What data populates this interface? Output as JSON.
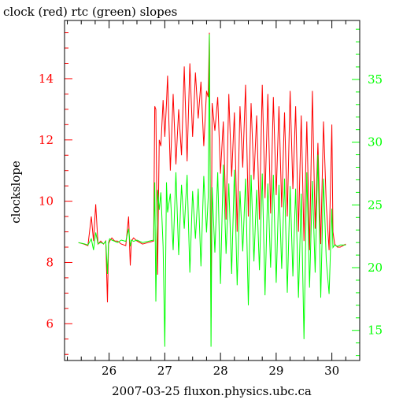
{
  "chart_data": {
    "type": "line",
    "title": "clock (red) rtc (green) slopes",
    "xlabel": "2007-03-25 fluxon.physics.ubc.ca",
    "ylabel": "clockslope",
    "y2label": "",
    "xlim": [
      25.2,
      30.5
    ],
    "ylim": [
      4.8,
      15.9
    ],
    "y2lim": [
      12.6,
      39.7
    ],
    "x_ticks": [
      26,
      27,
      28,
      29,
      30
    ],
    "x_tick_labels": [
      "26",
      "27",
      "28",
      "29",
      "30"
    ],
    "y_ticks": [
      6,
      8,
      10,
      12,
      14
    ],
    "y_tick_labels": [
      "6",
      "8",
      "10",
      "12",
      "14"
    ],
    "y2_ticks": [
      15,
      20,
      25,
      30,
      35
    ],
    "y2_tick_labels": [
      "15",
      "20",
      "25",
      "30",
      "35"
    ],
    "grid": false,
    "colors": {
      "clock": "#ff0000",
      "rtc": "#00ff00",
      "axis_left": "#ff0000",
      "axis_right": "#00ff00",
      "frame": "#000000"
    },
    "series": [
      {
        "name": "clock",
        "axis": "left",
        "color": "#ff0000",
        "x": [
          25.45,
          25.55,
          25.62,
          25.68,
          25.72,
          25.76,
          25.8,
          25.85,
          25.9,
          25.94,
          25.97,
          25.99,
          26.01,
          26.05,
          26.1,
          26.15,
          26.22,
          26.3,
          26.35,
          26.38,
          26.4,
          26.44,
          26.5,
          26.6,
          26.7,
          26.8,
          26.82,
          26.84,
          26.87,
          26.9,
          26.93,
          26.97,
          27.0,
          27.03,
          27.05,
          27.1,
          27.15,
          27.2,
          27.25,
          27.3,
          27.35,
          27.4,
          27.45,
          27.5,
          27.55,
          27.6,
          27.65,
          27.7,
          27.75,
          27.78,
          27.8,
          27.83,
          27.85,
          27.9,
          27.95,
          28.0,
          28.05,
          28.1,
          28.15,
          28.2,
          28.25,
          28.3,
          28.35,
          28.4,
          28.45,
          28.5,
          28.55,
          28.6,
          28.65,
          28.7,
          28.75,
          28.8,
          28.85,
          28.9,
          28.95,
          29.0,
          29.05,
          29.1,
          29.15,
          29.2,
          29.25,
          29.3,
          29.35,
          29.4,
          29.45,
          29.5,
          29.55,
          29.6,
          29.65,
          29.7,
          29.75,
          29.8,
          29.85,
          29.9,
          29.95,
          30.0,
          30.02,
          30.05,
          30.1,
          30.15,
          30.2,
          30.25
        ],
        "values": [
          8.65,
          8.6,
          8.55,
          9.5,
          8.7,
          9.9,
          8.6,
          8.7,
          8.6,
          8.7,
          6.7,
          8.6,
          8.7,
          8.8,
          8.7,
          8.7,
          8.6,
          8.55,
          9.5,
          7.9,
          8.7,
          8.8,
          8.7,
          8.6,
          8.65,
          8.7,
          13.1,
          13.0,
          7.6,
          12.0,
          11.8,
          13.3,
          12.1,
          13.2,
          14.1,
          11.0,
          13.5,
          11.2,
          13.0,
          11.5,
          14.4,
          11.3,
          14.5,
          12.1,
          14.2,
          12.7,
          13.9,
          11.8,
          13.6,
          13.4,
          15.5,
          6.2,
          13.2,
          12.3,
          13.4,
          10.9,
          12.6,
          9.4,
          13.5,
          10.8,
          12.9,
          9.0,
          13.1,
          11.1,
          13.8,
          9.5,
          13.2,
          10.7,
          12.8,
          9.4,
          13.8,
          10.1,
          13.5,
          9.6,
          13.4,
          10.2,
          13.1,
          9.8,
          12.9,
          9.5,
          13.6,
          10.4,
          13.1,
          9.0,
          12.8,
          8.7,
          12.6,
          8.4,
          13.6,
          9.1,
          11.9,
          8.6,
          12.6,
          9.9,
          8.4,
          12.5,
          9.0,
          8.6,
          8.5,
          8.5,
          8.55,
          8.6
        ]
      },
      {
        "name": "rtc",
        "axis": "right",
        "color": "#00ff00",
        "x": [
          25.45,
          25.55,
          25.62,
          25.68,
          25.72,
          25.76,
          25.8,
          25.85,
          25.9,
          25.94,
          25.97,
          25.99,
          26.01,
          26.05,
          26.1,
          26.15,
          26.22,
          26.3,
          26.35,
          26.38,
          26.4,
          26.44,
          26.5,
          26.6,
          26.7,
          26.8,
          26.82,
          26.84,
          26.87,
          26.9,
          26.93,
          26.97,
          27.0,
          27.03,
          27.05,
          27.1,
          27.15,
          27.2,
          27.25,
          27.3,
          27.35,
          27.4,
          27.45,
          27.5,
          27.55,
          27.6,
          27.65,
          27.7,
          27.75,
          27.78,
          27.8,
          27.83,
          27.85,
          27.9,
          27.95,
          28.0,
          28.05,
          28.1,
          28.15,
          28.2,
          28.25,
          28.3,
          28.35,
          28.4,
          28.45,
          28.5,
          28.55,
          28.6,
          28.65,
          28.7,
          28.75,
          28.8,
          28.85,
          28.9,
          28.95,
          29.0,
          29.05,
          29.1,
          29.15,
          29.2,
          29.25,
          29.3,
          29.35,
          29.4,
          29.45,
          29.5,
          29.55,
          29.6,
          29.65,
          29.7,
          29.75,
          29.8,
          29.85,
          29.9,
          29.95,
          30.0,
          30.02,
          30.05,
          30.1,
          30.15,
          30.2,
          30.25
        ],
        "values": [
          22.0,
          21.9,
          21.8,
          22.3,
          21.4,
          22.8,
          21.9,
          22.0,
          21.9,
          22.1,
          19.5,
          22.0,
          22.3,
          22.2,
          22.1,
          22.0,
          22.2,
          22.1,
          23.1,
          21.7,
          22.2,
          22.1,
          22.2,
          22.0,
          22.1,
          22.2,
          26.8,
          17.3,
          26.2,
          24.6,
          26.0,
          21.7,
          13.7,
          26.8,
          24.4,
          25.9,
          21.4,
          27.6,
          21.0,
          26.6,
          23.1,
          27.4,
          19.6,
          26.1,
          22.3,
          26.3,
          20.1,
          27.3,
          22.8,
          25.6,
          38.6,
          13.7,
          26.4,
          21.2,
          27.6,
          18.7,
          28.2,
          21.1,
          26.7,
          19.5,
          27.8,
          18.6,
          26.1,
          21.3,
          27.1,
          17.0,
          27.4,
          20.5,
          26.2,
          19.8,
          27.5,
          17.8,
          26.7,
          20.0,
          27.4,
          18.8,
          26.6,
          19.9,
          27.1,
          18.0,
          26.5,
          19.3,
          26.3,
          17.6,
          25.9,
          14.3,
          27.6,
          18.4,
          26.9,
          19.6,
          29.0,
          17.6,
          27.1,
          20.6,
          17.9,
          24.7,
          21.6,
          21.8,
          21.7,
          21.8,
          21.8,
          21.8
        ]
      }
    ]
  }
}
